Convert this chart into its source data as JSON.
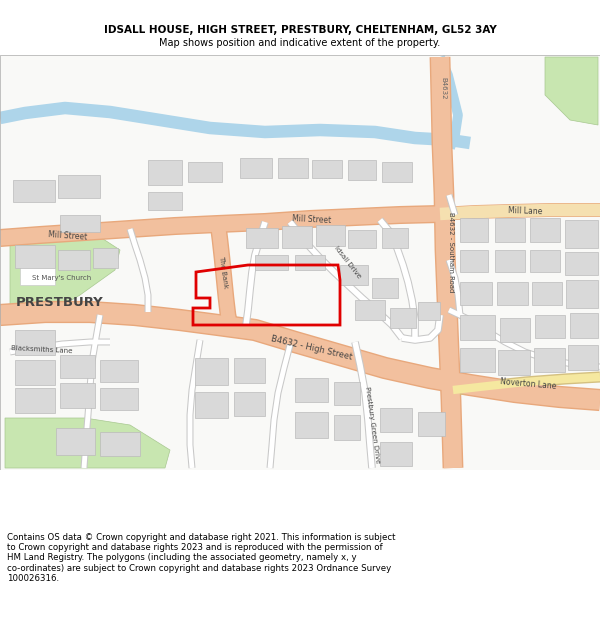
{
  "title_line1": "IDSALL HOUSE, HIGH STREET, PRESTBURY, CHELTENHAM, GL52 3AY",
  "title_line2": "Map shows position and indicative extent of the property.",
  "footer": "Contains OS data © Crown copyright and database right 2021. This information is subject\nto Crown copyright and database rights 2023 and is reproduced with the permission of\nHM Land Registry. The polygons (including the associated geometry, namely x, y\nco-ordinates) are subject to Crown copyright and database rights 2023 Ordnance Survey\n100026316.",
  "map_bg": "#f9f9f7",
  "road_major_fill": "#f2c09e",
  "road_major_border": "#e8a87c",
  "road_b_fill": "#f2c09e",
  "road_minor_fill": "#ffffff",
  "road_minor_border": "#d0d0d0",
  "building_fill": "#d9d9d9",
  "building_border": "#bbbbbb",
  "green_fill": "#c8e6b0",
  "green_border": "#a8c890",
  "water_fill": "#aed5ea",
  "plot_border": "#e00000",
  "title1_size": 7.5,
  "title2_size": 7.0,
  "footer_size": 6.2
}
